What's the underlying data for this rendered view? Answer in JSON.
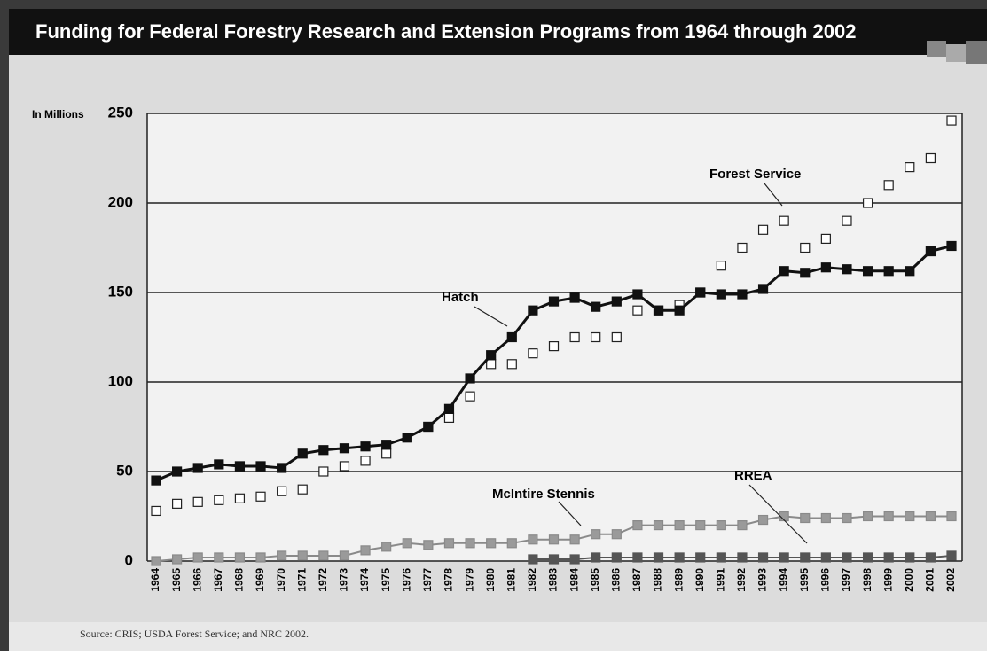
{
  "chart_data": {
    "type": "line",
    "title": "Funding for Federal Forestry Research and Extension Programs from 1964 through 2002",
    "y_label": "In Millions",
    "source": "Source: CRIS; USDA Forest Service; and NRC 2002.",
    "categories": [
      "1964",
      "1965",
      "1966",
      "1967",
      "1968",
      "1969",
      "1970",
      "1971",
      "1972",
      "1973",
      "1974",
      "1975",
      "1976",
      "1977",
      "1978",
      "1979",
      "1980",
      "1981",
      "1982",
      "1983",
      "1984",
      "1985",
      "1986",
      "1987",
      "1988",
      "1989",
      "1990",
      "1991",
      "1992",
      "1993",
      "1994",
      "1995",
      "1996",
      "1997",
      "1998",
      "1999",
      "2000",
      "2001",
      "2002"
    ],
    "ylim": [
      0,
      250
    ],
    "yticks": [
      0,
      50,
      100,
      150,
      200,
      250
    ],
    "grid": true,
    "series": [
      {
        "name": "Forest Service",
        "color": "#222222",
        "marker_fill": "#ffffff",
        "line": false,
        "values": [
          28,
          32,
          33,
          34,
          35,
          36,
          39,
          40,
          50,
          53,
          56,
          60,
          69,
          75,
          80,
          92,
          110,
          110,
          116,
          120,
          125,
          125,
          125,
          140,
          140,
          143,
          150,
          165,
          175,
          185,
          190,
          175,
          180,
          190,
          200,
          210,
          220,
          225,
          246
        ]
      },
      {
        "name": "Hatch",
        "color": "#111111",
        "marker_fill": "#111111",
        "line": true,
        "values": [
          45,
          50,
          52,
          54,
          53,
          53,
          52,
          60,
          62,
          63,
          64,
          65,
          69,
          75,
          85,
          102,
          115,
          125,
          140,
          145,
          147,
          142,
          145,
          149,
          140,
          140,
          150,
          149,
          149,
          152,
          162,
          161,
          164,
          163,
          162,
          162,
          162,
          173,
          176
        ]
      },
      {
        "name": "McIntire Stennis",
        "color": "#8a8a8a",
        "marker_fill": "#9a9a9a",
        "line": true,
        "values": [
          0,
          1,
          2,
          2,
          2,
          2,
          3,
          3,
          3,
          3,
          6,
          8,
          10,
          9,
          10,
          10,
          10,
          10,
          12,
          12,
          12,
          15,
          15,
          20,
          20,
          20,
          20,
          20,
          20,
          23,
          25,
          24,
          24,
          24,
          25,
          25,
          25,
          25,
          25
        ]
      },
      {
        "name": "RREA",
        "color": "#555555",
        "marker_fill": "#555555",
        "line": true,
        "values": [
          null,
          null,
          null,
          null,
          null,
          null,
          null,
          null,
          null,
          null,
          null,
          null,
          null,
          null,
          null,
          null,
          null,
          null,
          1,
          1,
          1,
          2,
          2,
          2,
          2,
          2,
          2,
          2,
          2,
          2,
          2,
          2,
          2,
          2,
          2,
          2,
          2,
          2,
          3
        ]
      }
    ]
  }
}
